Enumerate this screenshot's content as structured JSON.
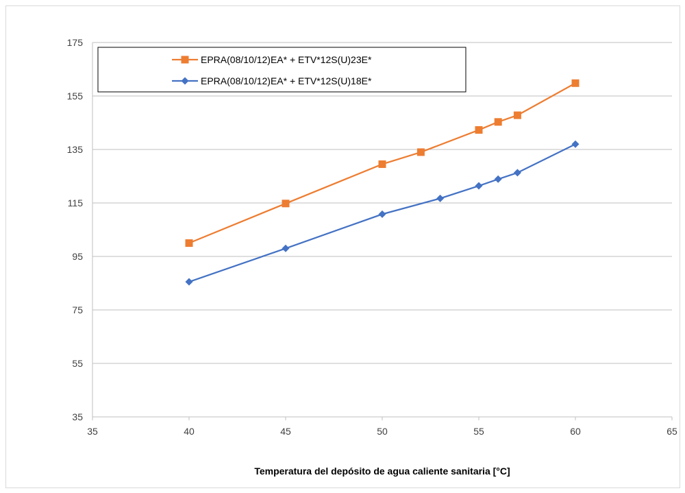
{
  "chart_data": {
    "type": "line",
    "title": "",
    "xlabel": "Temperatura del depósito de agua caliente sanitaria [°C]",
    "ylabel": "",
    "xlim": [
      35,
      65
    ],
    "ylim": [
      35,
      175
    ],
    "xticks": [
      35,
      40,
      45,
      50,
      55,
      60,
      65
    ],
    "yticks": [
      35,
      55,
      75,
      95,
      115,
      135,
      155,
      175
    ],
    "grid": "horizontal",
    "legend_position": "top-left",
    "series": [
      {
        "name": "EPRA(08/10/12)EA* + ETV*12S(U)23E*",
        "color": "#ED7D31",
        "marker": "square",
        "x": [
          40,
          45,
          50,
          52,
          55,
          56,
          57,
          60
        ],
        "y": [
          100,
          114.8,
          129.5,
          134,
          142.3,
          145.3,
          147.8,
          159.8
        ]
      },
      {
        "name": "EPRA(08/10/12)EA* + ETV*12S(U)18E*",
        "color": "#4472C4",
        "marker": "diamond",
        "x": [
          40,
          45,
          50,
          53,
          55,
          56,
          57,
          60
        ],
        "y": [
          85.5,
          98,
          110.8,
          116.7,
          121.4,
          123.9,
          126.3,
          137
        ]
      }
    ]
  }
}
